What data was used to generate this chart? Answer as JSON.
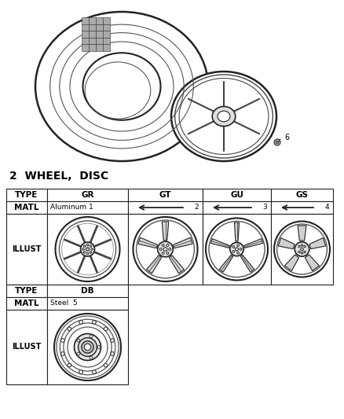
{
  "bg_color": "#ffffff",
  "border_color": "#222222",
  "font_color": "#000000",
  "title": "2  WHEEL,  DISC",
  "col_headers": [
    "TYPE",
    "GR",
    "GT",
    "GU",
    "GS"
  ],
  "matl_gr": "Aluminum 1",
  "matl_nums": [
    "2",
    "3",
    "4"
  ],
  "type2": "DB",
  "matl2": "Steel  5",
  "part6_label": "6",
  "figsize": [
    4.38,
    5.33
  ],
  "dpi": 100
}
